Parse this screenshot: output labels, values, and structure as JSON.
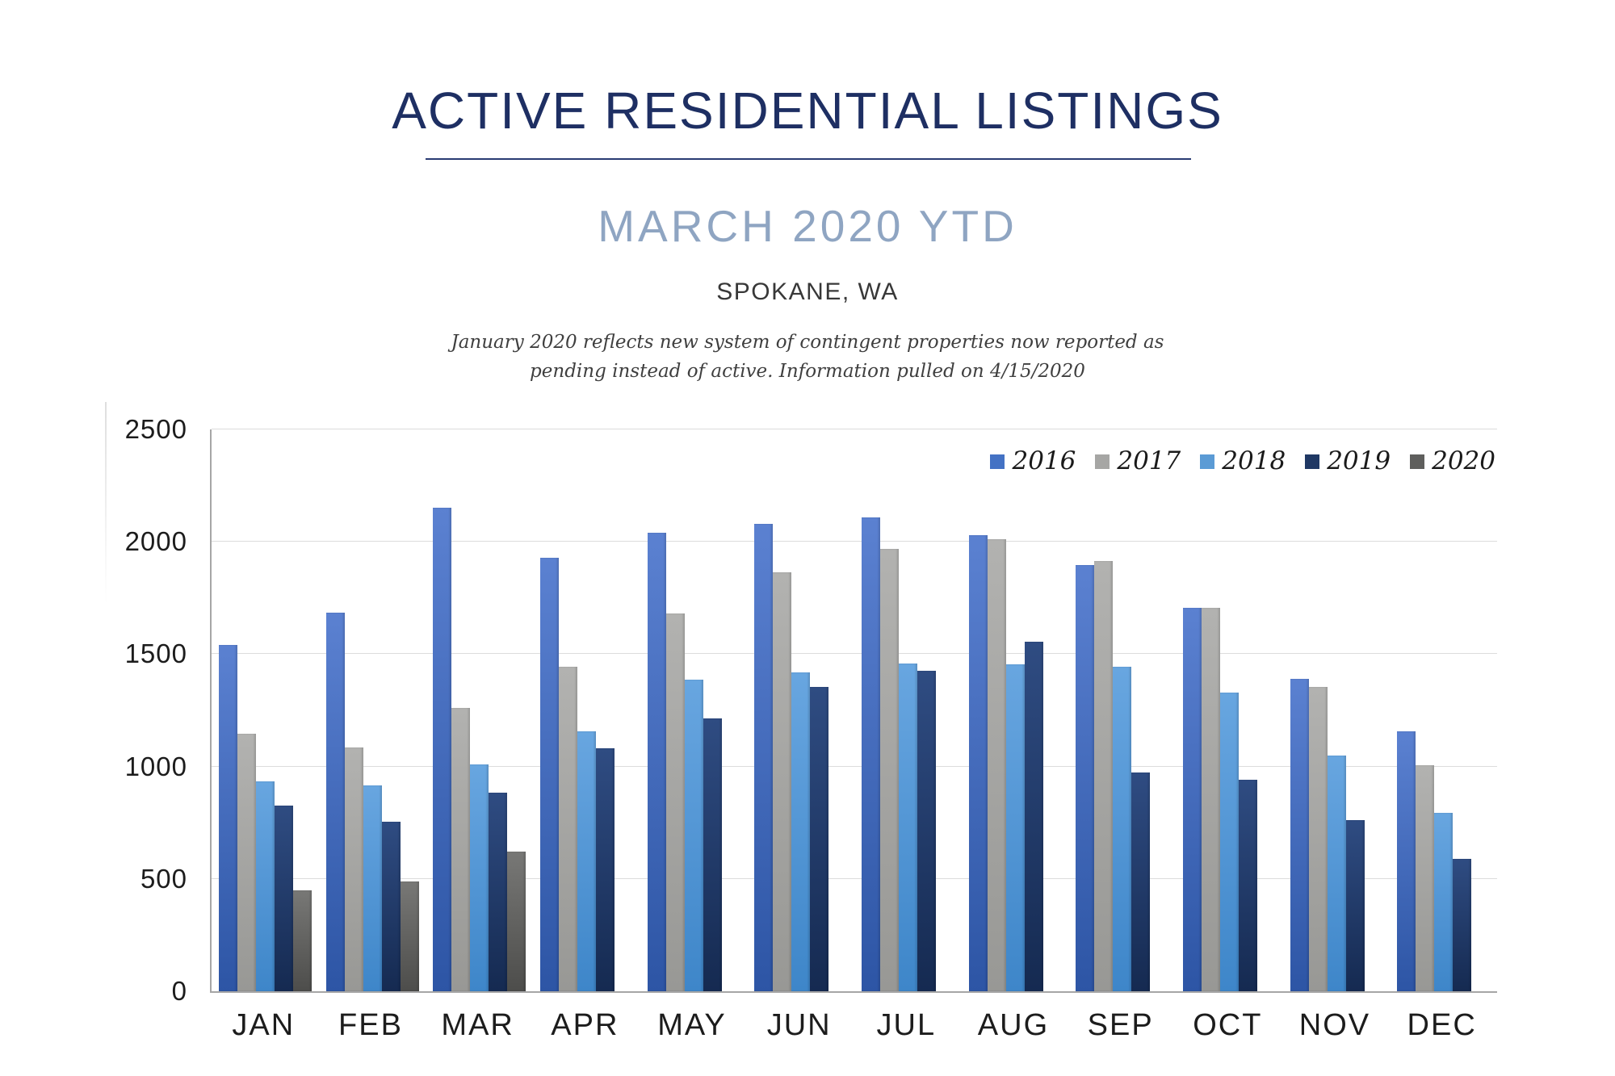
{
  "header": {
    "title": "ACTIVE RESIDENTIAL LISTINGS",
    "subtitle": "MARCH 2020 YTD",
    "location": "SPOKANE, WA",
    "note_line1": "January 2020 reflects new system of contingent properties now reported as",
    "note_line2": "pending instead of active.  Information pulled on 4/15/2020"
  },
  "chart_data": {
    "type": "bar",
    "title": "ACTIVE RESIDENTIAL LISTINGS",
    "subtitle": "MARCH 2020 YTD",
    "region": "SPOKANE, WA",
    "categories": [
      "JAN",
      "FEB",
      "MAR",
      "APR",
      "MAY",
      "JUN",
      "JUL",
      "AUG",
      "SEP",
      "OCT",
      "NOV",
      "DEC"
    ],
    "ylim": [
      0,
      2500
    ],
    "yticks": [
      0,
      500,
      1000,
      1500,
      2000,
      2500
    ],
    "grid": true,
    "legend_position": "top-right",
    "axis_color": "#a6a6a6",
    "gridline_color": "#dcdcdc",
    "series": [
      {
        "name": "2016",
        "legend_color": "#4472c4",
        "gradient_top": "#5b81d1",
        "gradient_bottom": "#2d55a5",
        "values": [
          1540,
          1685,
          2150,
          1930,
          2040,
          2080,
          2110,
          2030,
          1895,
          1705,
          1390,
          1155
        ]
      },
      {
        "name": "2017",
        "legend_color": "#a6a6a4",
        "gradient_top": "#b2b2b0",
        "gradient_bottom": "#989895",
        "values": [
          1145,
          1085,
          1260,
          1445,
          1680,
          1865,
          1970,
          2010,
          1915,
          1705,
          1355,
          1005
        ]
      },
      {
        "name": "2018",
        "legend_color": "#5b9bd5",
        "gradient_top": "#68a6e0",
        "gradient_bottom": "#3e86c9",
        "values": [
          935,
          915,
          1010,
          1155,
          1385,
          1420,
          1460,
          1455,
          1445,
          1330,
          1050,
          795
        ]
      },
      {
        "name": "2019",
        "legend_color": "#1f3864",
        "gradient_top": "#2f4c82",
        "gradient_bottom": "#152a51",
        "values": [
          825,
          755,
          885,
          1080,
          1215,
          1355,
          1425,
          1555,
          975,
          940,
          760,
          590
        ]
      },
      {
        "name": "2020",
        "legend_color": "#5f5f5d",
        "gradient_top": "#787876",
        "gradient_bottom": "#4d4d4b",
        "values": [
          450,
          490,
          620,
          null,
          null,
          null,
          null,
          null,
          null,
          null,
          null,
          null
        ]
      }
    ]
  }
}
